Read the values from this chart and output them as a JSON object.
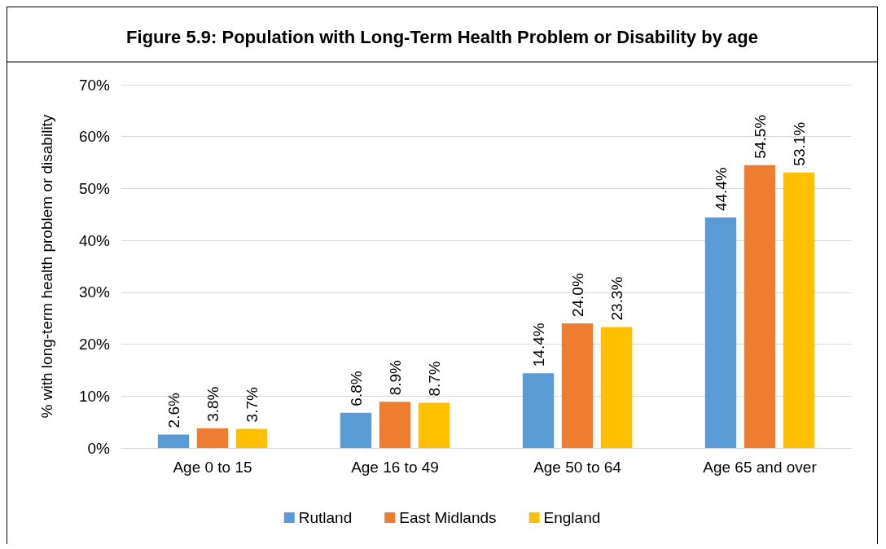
{
  "chart_data": {
    "type": "bar",
    "title": "Figure 5.9: Population with Long-Term Health Problem or Disability by age",
    "ylabel": "% with long-term health problem or disability",
    "categories": [
      "Age 0 to 15",
      "Age 16 to 49",
      "Age 50 to 64",
      "Age 65 and over"
    ],
    "series": [
      {
        "name": "Rutland",
        "color": "#5b9bd5",
        "values": [
          2.6,
          6.8,
          14.4,
          44.4
        ],
        "value_labels": [
          "2.6%",
          "6.8%",
          "14.4%",
          "44.4%"
        ]
      },
      {
        "name": "East Midlands",
        "color": "#ed7d31",
        "values": [
          3.8,
          8.9,
          24.0,
          54.5
        ],
        "value_labels": [
          "3.8%",
          "8.9%",
          "24.0%",
          "54.5%"
        ]
      },
      {
        "name": "England",
        "color": "#ffc000",
        "values": [
          3.7,
          8.7,
          23.3,
          53.1
        ],
        "value_labels": [
          "3.7%",
          "8.7%",
          "23.3%",
          "53.1%"
        ]
      }
    ],
    "ylim": [
      0,
      70
    ],
    "yticks": [
      {
        "value": 0,
        "label": "0%"
      },
      {
        "value": 10,
        "label": "10%"
      },
      {
        "value": 20,
        "label": "20%"
      },
      {
        "value": 30,
        "label": "30%"
      },
      {
        "value": 40,
        "label": "40%"
      },
      {
        "value": 50,
        "label": "50%"
      },
      {
        "value": 60,
        "label": "60%"
      },
      {
        "value": 70,
        "label": "70%"
      }
    ],
    "grid": "y",
    "legend": "bottom"
  }
}
